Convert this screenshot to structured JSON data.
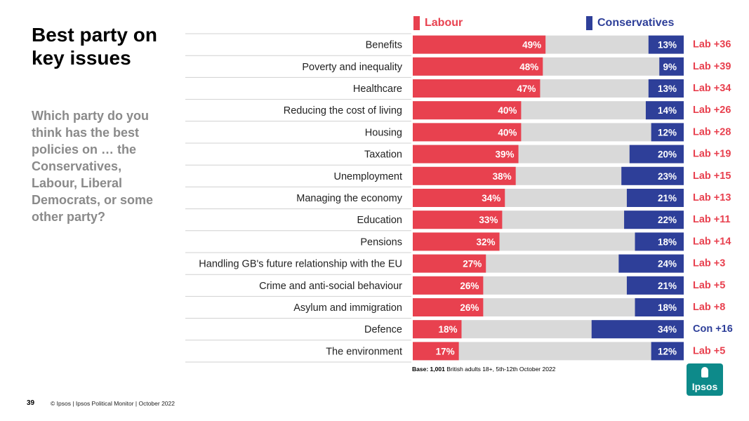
{
  "page": {
    "title": "Best party on key issues",
    "question": "Which party do you think has the best policies on … the Conservatives, Labour, Liberal Democrats, or some other party?",
    "base_label": "Base:",
    "base_count": "1,001",
    "base_text": "British adults 18+, 5th-12th October 2022",
    "page_number": "39",
    "footer": "© Ipsos | Ipsos Political Monitor | October 2022",
    "logo_text": "Ipsos"
  },
  "colors": {
    "labour": "#e8414f",
    "conservatives": "#2e3f99",
    "background_bar": "#d9d9d9",
    "title": "#000000",
    "question": "#8a8a8a"
  },
  "chart_data": {
    "type": "bar",
    "orientation": "horizontal-diverging-100",
    "series": [
      {
        "name": "Labour",
        "color": "#e8414f",
        "values": [
          49,
          48,
          47,
          40,
          40,
          39,
          38,
          34,
          33,
          32,
          27,
          26,
          26,
          18,
          17
        ]
      },
      {
        "name": "Conservatives",
        "color": "#2e3f99",
        "values": [
          13,
          9,
          13,
          14,
          12,
          20,
          23,
          21,
          22,
          18,
          24,
          21,
          18,
          34,
          12
        ]
      }
    ],
    "categories": [
      "Benefits",
      "Poverty and inequality",
      "Healthcare",
      "Reducing the cost of living",
      "Housing",
      "Taxation",
      "Unemployment",
      "Managing the economy",
      "Education",
      "Pensions",
      "Handling GB's future relationship with the EU",
      "Crime and anti-social behaviour",
      "Asylum and immigration",
      "Defence",
      "The environment"
    ],
    "leads": [
      "Lab +36",
      "Lab +39",
      "Lab +34",
      "Lab +26",
      "Lab +28",
      "Lab +19",
      "Lab +15",
      "Lab +13",
      "Lab +11",
      "Lab +14",
      "Lab +3",
      "Lab +5",
      "Lab +8",
      "Con +16",
      "Lab +5"
    ],
    "lead_party": [
      "labour",
      "labour",
      "labour",
      "labour",
      "labour",
      "labour",
      "labour",
      "labour",
      "labour",
      "labour",
      "labour",
      "labour",
      "labour",
      "conservatives",
      "labour"
    ],
    "xlim": [
      0,
      100
    ],
    "value_suffix": "%",
    "legend": [
      "Labour",
      "Conservatives"
    ],
    "legend_position": "top"
  }
}
